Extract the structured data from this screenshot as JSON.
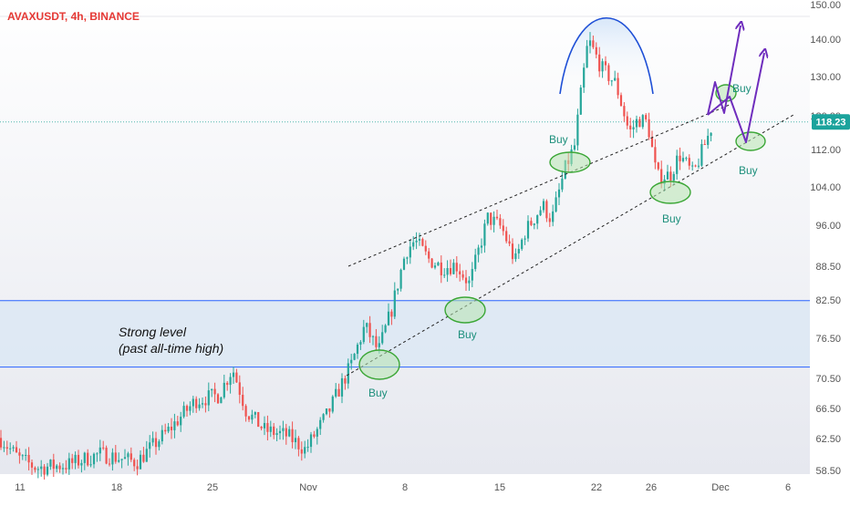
{
  "header": {
    "symbol_title": "AVAXUSDT, 4h, BINANCE"
  },
  "price_axis": {
    "ticks": [
      "150.00",
      "140.00",
      "130.00",
      "120.00",
      "112.00",
      "104.00",
      "96.00",
      "88.50",
      "82.50",
      "76.50",
      "70.50",
      "66.50",
      "62.50",
      "58.50"
    ],
    "last_price_label": "118.23"
  },
  "time_axis": {
    "ticks": [
      "11",
      "18",
      "25",
      "Nov",
      "8",
      "15",
      "22",
      "26",
      "Dec",
      "6"
    ]
  },
  "annotations": {
    "zone_label_line1": "Strong level",
    "zone_label_line2": "(past all-time high)",
    "buy_label": "Buy"
  },
  "colors": {
    "up": "#26a69a",
    "down": "#ef5350",
    "zone_line": "#2962ff",
    "zone_fill": "#dce8f3",
    "arc": "#1e4fd6",
    "projection": "#6f2dbd",
    "ellipse_stroke": "#3aa635",
    "ellipse_fill": "#b7e4b0",
    "last_price_bg": "#1ba39c",
    "title": "#e53935"
  },
  "chart_data": {
    "type": "candlestick",
    "title": "AVAXUSDT, 4h, BINANCE",
    "y_scale": "log",
    "ylim": [
      57.5,
      151
    ],
    "last_price": 118.23,
    "zone": [
      71.2,
      81.7
    ],
    "x_tick_labels": [
      "11",
      "18",
      "25",
      "Nov",
      "8",
      "15",
      "22",
      "26",
      "Dec",
      "6"
    ],
    "price_path": [
      [
        0,
        61.5
      ],
      [
        20,
        59.0
      ],
      [
        40,
        57.8
      ],
      [
        75,
        58.2
      ],
      [
        110,
        59.5
      ],
      [
        150,
        58.5
      ],
      [
        185,
        62.5
      ],
      [
        215,
        66.5
      ],
      [
        240,
        67.2
      ],
      [
        255,
        71.0
      ],
      [
        270,
        65.0
      ],
      [
        290,
        62.5
      ],
      [
        315,
        61.8
      ],
      [
        335,
        60.0
      ],
      [
        360,
        64.8
      ],
      [
        385,
        71.5
      ],
      [
        400,
        77.5
      ],
      [
        415,
        73.5
      ],
      [
        430,
        80.5
      ],
      [
        445,
        90.5
      ],
      [
        455,
        92.5
      ],
      [
        470,
        89.0
      ],
      [
        485,
        87.5
      ],
      [
        500,
        88.0
      ],
      [
        515,
        84.5
      ],
      [
        535,
        97.0
      ],
      [
        550,
        95.0
      ],
      [
        565,
        88.5
      ],
      [
        575,
        94.0
      ],
      [
        595,
        99.5
      ],
      [
        605,
        96.5
      ],
      [
        620,
        107.5
      ],
      [
        630,
        112.5
      ],
      [
        645,
        140.0
      ],
      [
        660,
        132.0
      ],
      [
        675,
        128.0
      ],
      [
        690,
        115.5
      ],
      [
        700,
        119.0
      ],
      [
        710,
        118.0
      ],
      [
        720,
        105.5
      ],
      [
        735,
        106.0
      ],
      [
        745,
        110.5
      ],
      [
        760,
        106.0
      ],
      [
        775,
        114.0
      ],
      [
        782,
        118.2
      ]
    ]
  }
}
